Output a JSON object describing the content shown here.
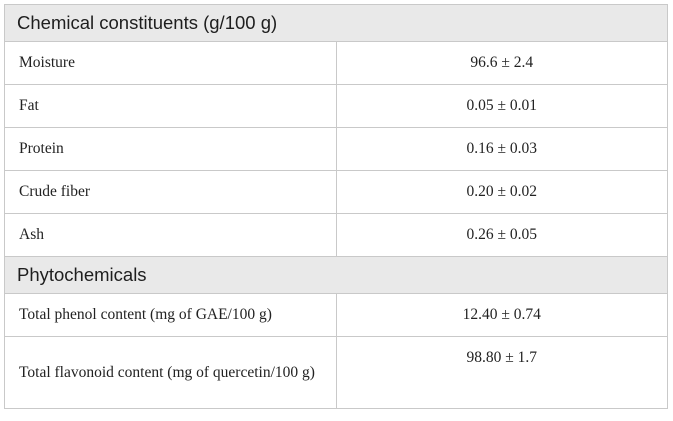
{
  "table": {
    "sections": [
      {
        "title": "Chemical constituents (g/100 g)",
        "rows": [
          {
            "label": "Moisture",
            "value": "96.6 ± 2.4"
          },
          {
            "label": "Fat",
            "value": "0.05 ± 0.01"
          },
          {
            "label": "Protein",
            "value": "0.16 ± 0.03"
          },
          {
            "label": "Crude fiber",
            "value": "0.20 ± 0.02"
          },
          {
            "label": "Ash",
            "value": "0.26 ± 0.05"
          }
        ]
      },
      {
        "title": "Phytochemicals",
        "rows": [
          {
            "label": "Total phenol content (mg of GAE/100 g)",
            "value": "12.40 ± 0.74"
          },
          {
            "label": "Total flavonoid content (mg of quercetin/100 g)",
            "value": "98.80 ± 1.7"
          }
        ]
      }
    ]
  },
  "colors": {
    "section_background": "#e9e9e9",
    "border": "#c9c9c9",
    "text": "#222222"
  }
}
